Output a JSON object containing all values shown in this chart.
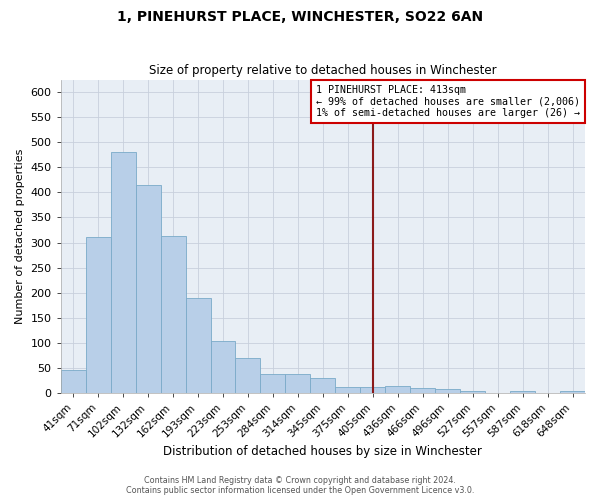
{
  "title": "1, PINEHURST PLACE, WINCHESTER, SO22 6AN",
  "subtitle": "Size of property relative to detached houses in Winchester",
  "xlabel": "Distribution of detached houses by size in Winchester",
  "ylabel": "Number of detached properties",
  "categories": [
    "41sqm",
    "71sqm",
    "102sqm",
    "132sqm",
    "162sqm",
    "193sqm",
    "223sqm",
    "253sqm",
    "284sqm",
    "314sqm",
    "345sqm",
    "375sqm",
    "405sqm",
    "436sqm",
    "466sqm",
    "496sqm",
    "527sqm",
    "557sqm",
    "587sqm",
    "618sqm",
    "648sqm"
  ],
  "values": [
    46,
    311,
    480,
    415,
    314,
    190,
    103,
    70,
    38,
    38,
    31,
    13,
    13,
    15,
    10,
    8,
    5,
    0,
    5,
    0,
    5
  ],
  "bar_color": "#b8cfe8",
  "bar_edge_color": "#7aaac8",
  "grid_color": "#c8d0dc",
  "bg_color": "#e8eef5",
  "vline_x_idx": 12,
  "vline_color": "#8b1a1a",
  "annotation_box_color": "#cc0000",
  "annotation_text_line1": "1 PINEHURST PLACE: 413sqm",
  "annotation_text_line2": "← 99% of detached houses are smaller (2,006)",
  "annotation_text_line3": "1% of semi-detached houses are larger (26) →",
  "ylim": [
    0,
    625
  ],
  "yticks": [
    0,
    50,
    100,
    150,
    200,
    250,
    300,
    350,
    400,
    450,
    500,
    550,
    600
  ],
  "footer_line1": "Contains HM Land Registry data © Crown copyright and database right 2024.",
  "footer_line2": "Contains public sector information licensed under the Open Government Licence v3.0.",
  "figsize": [
    6.0,
    5.0
  ],
  "dpi": 100
}
